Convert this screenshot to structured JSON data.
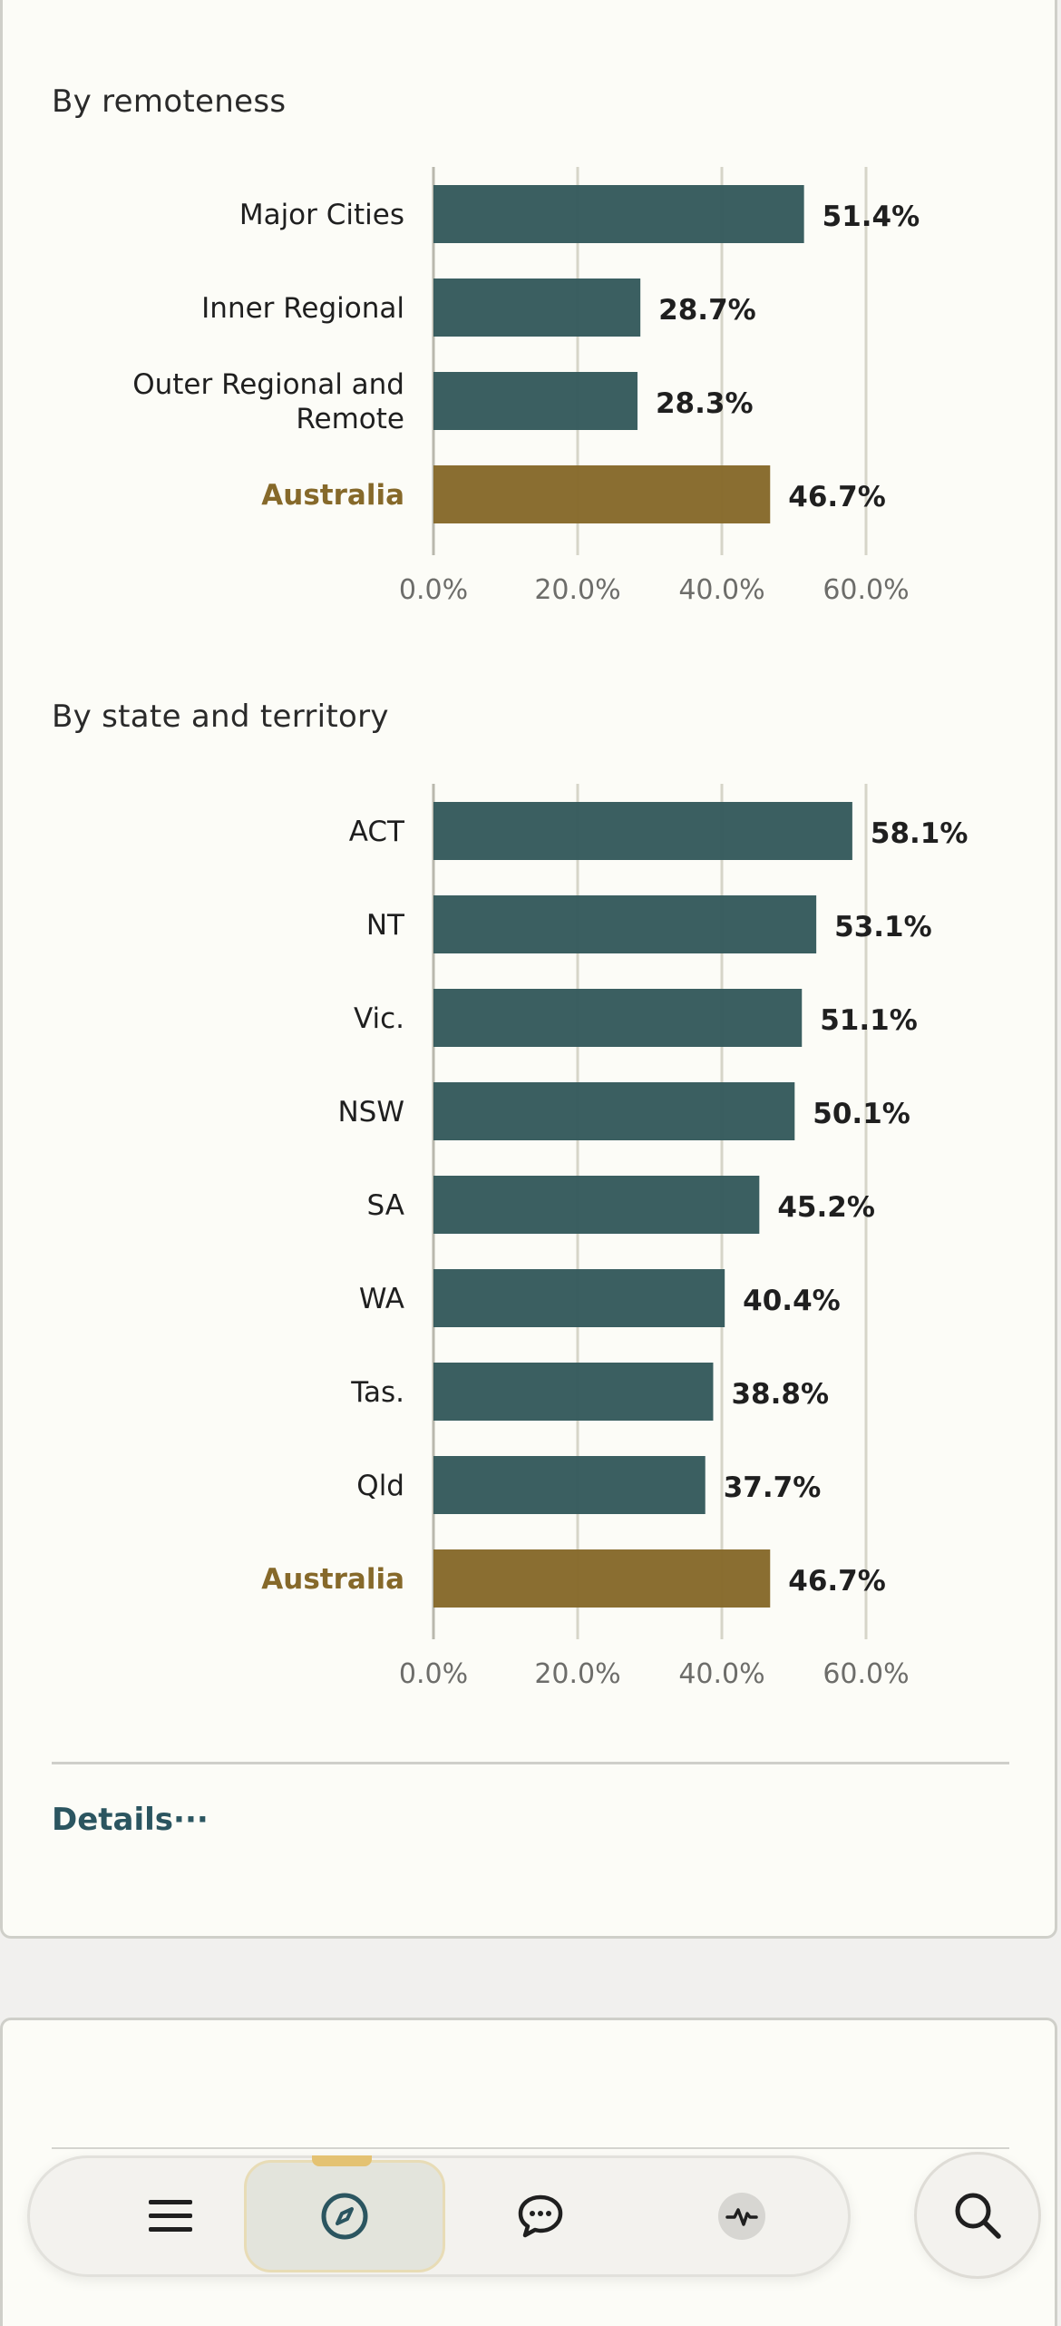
{
  "sections": {
    "remoteness_title": "By remoteness",
    "state_title": "By state and territory"
  },
  "details_label": "Details···",
  "colors": {
    "bar": "#355a5c",
    "highlight": "#86692a",
    "highlight_text": "#86692a",
    "grid": "#d6d5c8"
  },
  "nav": {
    "items": [
      {
        "name": "menu-icon"
      },
      {
        "name": "compass-icon",
        "active": true
      },
      {
        "name": "chat-icon"
      },
      {
        "name": "activity-icon"
      }
    ],
    "search_icon": "search-icon"
  },
  "chart_data": [
    {
      "type": "bar",
      "orientation": "horizontal",
      "title": "By remoteness",
      "categories": [
        "Major Cities",
        "Inner Regional",
        "Outer Regional and Remote",
        "Australia"
      ],
      "values": [
        51.4,
        28.7,
        28.3,
        46.7
      ],
      "value_labels": [
        "51.4%",
        "28.7%",
        "28.3%",
        "46.7%"
      ],
      "highlight": "Australia",
      "xlim": [
        0,
        60
      ],
      "xticks": [
        "0.0%",
        "20.0%",
        "40.0%",
        "60.0%"
      ],
      "grid": true
    },
    {
      "type": "bar",
      "orientation": "horizontal",
      "title": "By state and territory",
      "categories": [
        "ACT",
        "NT",
        "Vic.",
        "NSW",
        "SA",
        "WA",
        "Tas.",
        "Qld",
        "Australia"
      ],
      "values": [
        58.1,
        53.1,
        51.1,
        50.1,
        45.2,
        40.4,
        38.8,
        37.7,
        46.7
      ],
      "value_labels": [
        "58.1%",
        "53.1%",
        "51.1%",
        "50.1%",
        "45.2%",
        "40.4%",
        "38.8%",
        "37.7%",
        "46.7%"
      ],
      "highlight": "Australia",
      "xlim": [
        0,
        60
      ],
      "xticks": [
        "0.0%",
        "20.0%",
        "40.0%",
        "60.0%"
      ],
      "grid": true
    }
  ]
}
